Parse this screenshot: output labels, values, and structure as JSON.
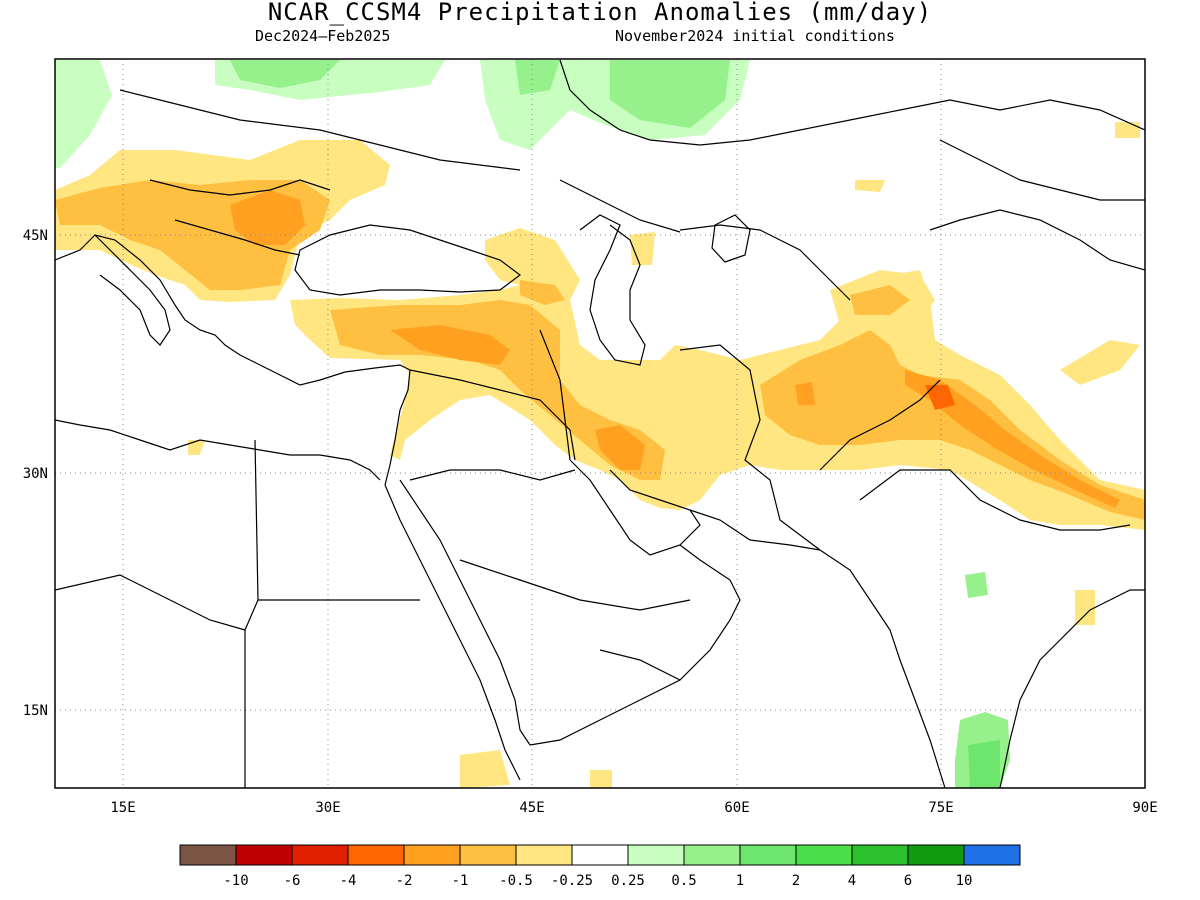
{
  "header": {
    "title": "NCAR_CCSM4 Precipitation Anomalies (mm/day)",
    "season": "Dec2024–Feb2025",
    "init": "November2024 initial conditions"
  },
  "map": {
    "lat_labels": [
      "45N",
      "30N",
      "15N"
    ],
    "lat_values": [
      45,
      30,
      15
    ],
    "lon_labels": [
      "15E",
      "30E",
      "45E",
      "60E",
      "75E",
      "90E"
    ],
    "lon_values": [
      15,
      30,
      45,
      60,
      75,
      90
    ],
    "lon_range": [
      10,
      90
    ],
    "lat_range": [
      10,
      56
    ]
  },
  "legend": {
    "labels": [
      "-10",
      "-6",
      "-4",
      "-2",
      "-1",
      "-0.5",
      "-0.25",
      "0.25",
      "0.5",
      "1",
      "2",
      "4",
      "6",
      "10"
    ],
    "colors": [
      "#7a5544",
      "#c00000",
      "#e02000",
      "#ff6600",
      "#ffa020",
      "#ffbf40",
      "#ffe680",
      "#ffffff",
      "#c8ffc0",
      "#96f08c",
      "#6ee66e",
      "#4ade4a",
      "#2cc02c",
      "#109a10",
      "#2070e8"
    ]
  }
}
